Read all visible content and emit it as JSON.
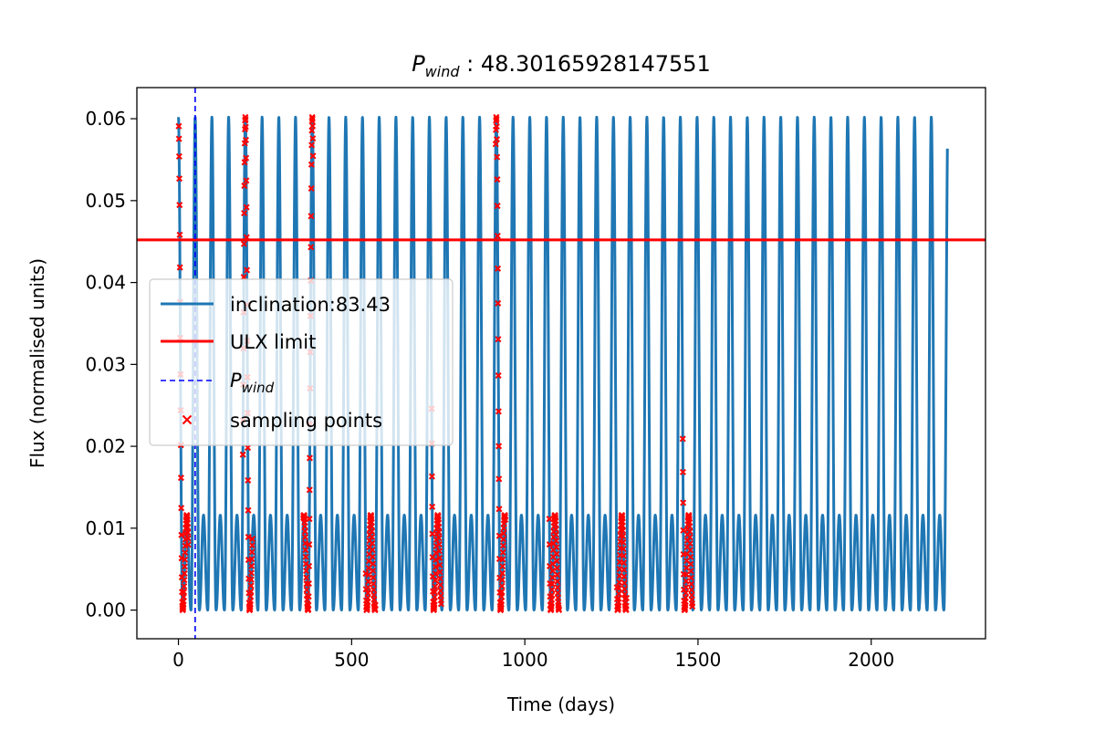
{
  "chart_data": {
    "type": "line",
    "title_main": "P",
    "title_sub": "wind",
    "title_value": " : 48.30165928147551",
    "xlabel": "Time (days)",
    "ylabel": "Flux (normalised units)",
    "xlim": [
      -120,
      2330
    ],
    "ylim": [
      -0.0035,
      0.0638
    ],
    "xticks": [
      0,
      500,
      1000,
      1500,
      2000
    ],
    "xtick_labels": [
      "0",
      "500",
      "1000",
      "1500",
      "2000"
    ],
    "yticks": [
      0.0,
      0.01,
      0.02,
      0.03,
      0.04,
      0.05,
      0.06
    ],
    "ytick_labels": [
      "0.00",
      "0.01",
      "0.02",
      "0.03",
      "0.04",
      "0.05",
      "0.06"
    ],
    "grid": false,
    "legend_position": "center-left",
    "colors": {
      "inclination_series": "#1f77b4",
      "ulx_limit": "#ff0000",
      "p_wind": "#0000ff",
      "sampling": "#ff0000"
    },
    "inclination_series": {
      "name": "inclination:83.43",
      "period_days": 48.30165928147551,
      "high_peak": 0.0602,
      "low_peak": 0.0116,
      "minimum": 0.0,
      "t_start": 0,
      "t_end": 2220
    },
    "ulx_limit": {
      "name": "ULX limit",
      "y": 0.0452
    },
    "p_wind": {
      "name_main": "P",
      "name_sub": "wind",
      "x": 48.30165928147551
    },
    "sampling_points": {
      "name": "sampling points",
      "cluster_centers": [
        15,
        200,
        375,
        555,
        745,
        930,
        1085,
        1280,
        1470
      ]
    }
  }
}
